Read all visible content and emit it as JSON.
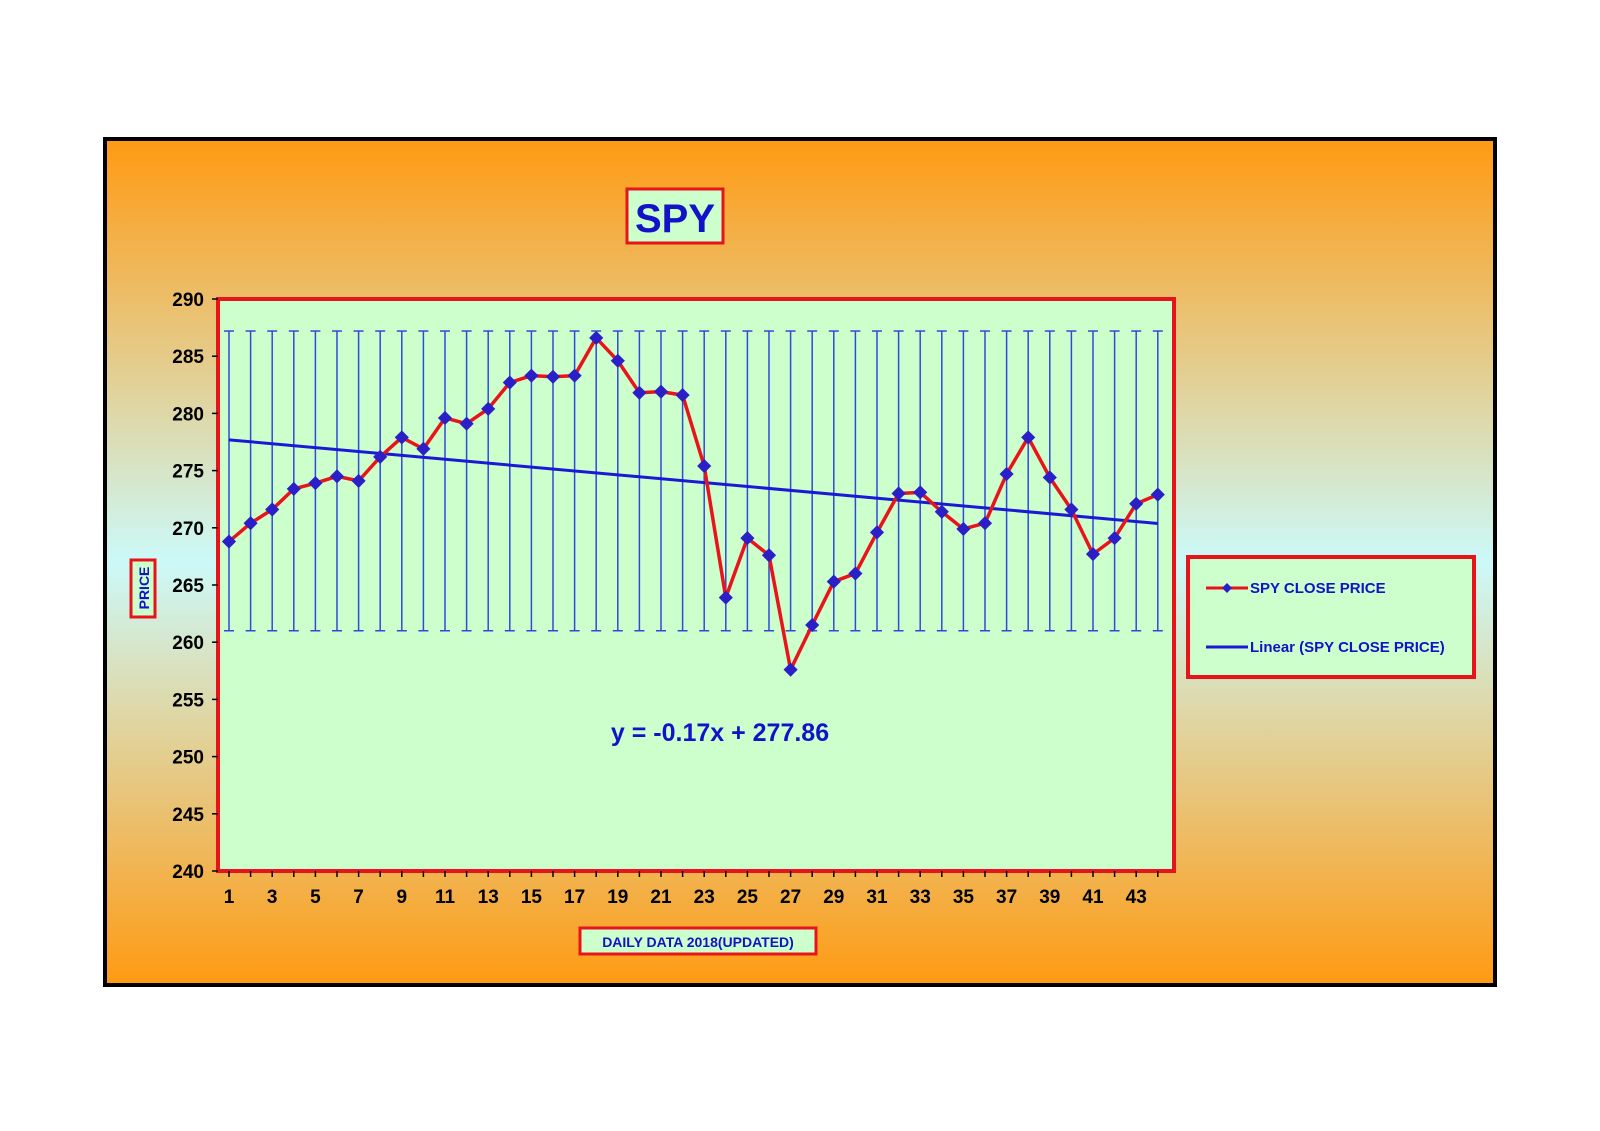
{
  "chart_data": {
    "type": "line",
    "title": "SPY",
    "xlabel": "DAILY DATA 2018(UPDATED)",
    "ylabel": "PRICE",
    "ylim": [
      240,
      290
    ],
    "yticks": [
      240,
      245,
      250,
      255,
      260,
      265,
      270,
      275,
      280,
      285,
      290
    ],
    "xticks": [
      1,
      3,
      5,
      7,
      9,
      11,
      13,
      15,
      17,
      19,
      21,
      23,
      25,
      27,
      29,
      31,
      33,
      35,
      37,
      39,
      41,
      43
    ],
    "x": [
      1,
      2,
      3,
      4,
      5,
      6,
      7,
      8,
      9,
      10,
      11,
      12,
      13,
      14,
      15,
      16,
      17,
      18,
      19,
      20,
      21,
      22,
      23,
      24,
      25,
      26,
      27,
      28,
      29,
      30,
      31,
      32,
      33,
      34,
      35,
      36,
      37,
      38,
      39,
      40,
      41,
      42,
      43,
      44
    ],
    "series": [
      {
        "name": "SPY CLOSE PRICE",
        "color": "#e8141b",
        "marker_color": "#2b1fc8",
        "values": [
          268.8,
          270.4,
          271.6,
          273.4,
          273.9,
          274.5,
          274.1,
          276.2,
          277.9,
          276.9,
          279.6,
          279.1,
          280.4,
          282.7,
          283.3,
          283.2,
          283.3,
          286.6,
          284.6,
          281.8,
          281.9,
          281.6,
          275.4,
          263.9,
          269.1,
          267.6,
          257.6,
          261.5,
          265.3,
          266.0,
          269.6,
          273.0,
          273.1,
          271.4,
          269.9,
          270.4,
          274.7,
          277.9,
          274.4,
          271.6,
          267.7,
          269.1,
          272.1,
          272.9
        ]
      }
    ],
    "trendline": {
      "name": "Linear (SPY CLOSE PRICE)",
      "color": "#1a1ad6",
      "slope": -0.17,
      "intercept": 277.86,
      "equation": "y = -0.17x + 277.86"
    },
    "vertical_lines": {
      "from": 261,
      "to": 287.2,
      "color": "#2f4ad8"
    },
    "legend_placement": "right",
    "grid": false,
    "colors": {
      "outer_top": "#ff9b15",
      "outer_mid": "#cdf8f8",
      "outer_bottom": "#ff9b15",
      "plot_bg": "#ccffcc",
      "frame": "#e8141b",
      "text_blue": "#1212c8"
    }
  }
}
